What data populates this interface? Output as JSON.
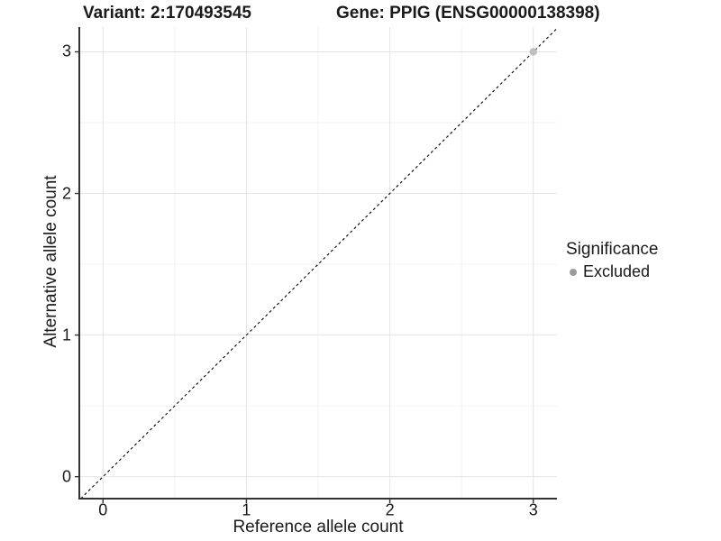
{
  "chart_data": {
    "type": "scatter",
    "title_left": "Variant: 2:170493545",
    "title_right": "Gene: PPIG (ENSG00000138398)",
    "xlabel": "Reference allele count",
    "ylabel": "Alternative allele count",
    "xlim": [
      -0.165,
      3.165
    ],
    "ylim": [
      -0.155,
      3.175
    ],
    "x_ticks": [
      0,
      1,
      2,
      3
    ],
    "y_ticks": [
      0,
      1,
      2,
      3
    ],
    "x_minor_ticks": [
      0.5,
      1.5,
      2.5
    ],
    "y_minor_ticks": [
      0.5,
      1.5,
      2.5
    ],
    "grid": true,
    "reference_line": {
      "type": "identity",
      "slope": 1,
      "intercept": 0,
      "style": "dashed",
      "color": "#000000"
    },
    "series": [
      {
        "name": "Excluded",
        "color": "#bfbfbf",
        "points": [
          {
            "x": 3,
            "y": 3
          }
        ]
      }
    ],
    "legend": {
      "title": "Significance",
      "position": "right",
      "entries": [
        {
          "label": "Excluded",
          "color": "#9c9c9c"
        }
      ]
    }
  },
  "colors": {
    "background": "#ffffff",
    "grid_major": "#e4e4e4",
    "grid_minor": "#f2f2f2",
    "axis_line": "#333333",
    "tick_mark": "#333333",
    "text": "#1a1a1a"
  }
}
